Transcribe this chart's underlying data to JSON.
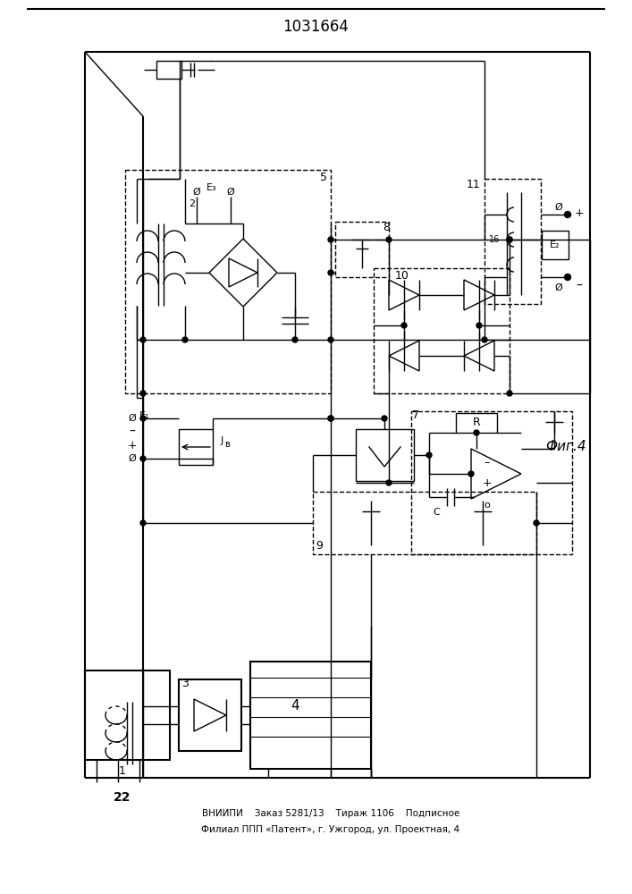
{
  "title": "1031664",
  "fig_label": "Фиг.4",
  "bottom_text_line1": "ВНИИПИ    Заказ 5281/13    Тираж 1106    Подписное",
  "bottom_text_line2": "Филиал ППП «Патент», г. Ужгород, ул. Проектная, 4",
  "bg_color": "#ffffff",
  "lc": "#000000",
  "lw": 1.0,
  "lw2": 1.5
}
